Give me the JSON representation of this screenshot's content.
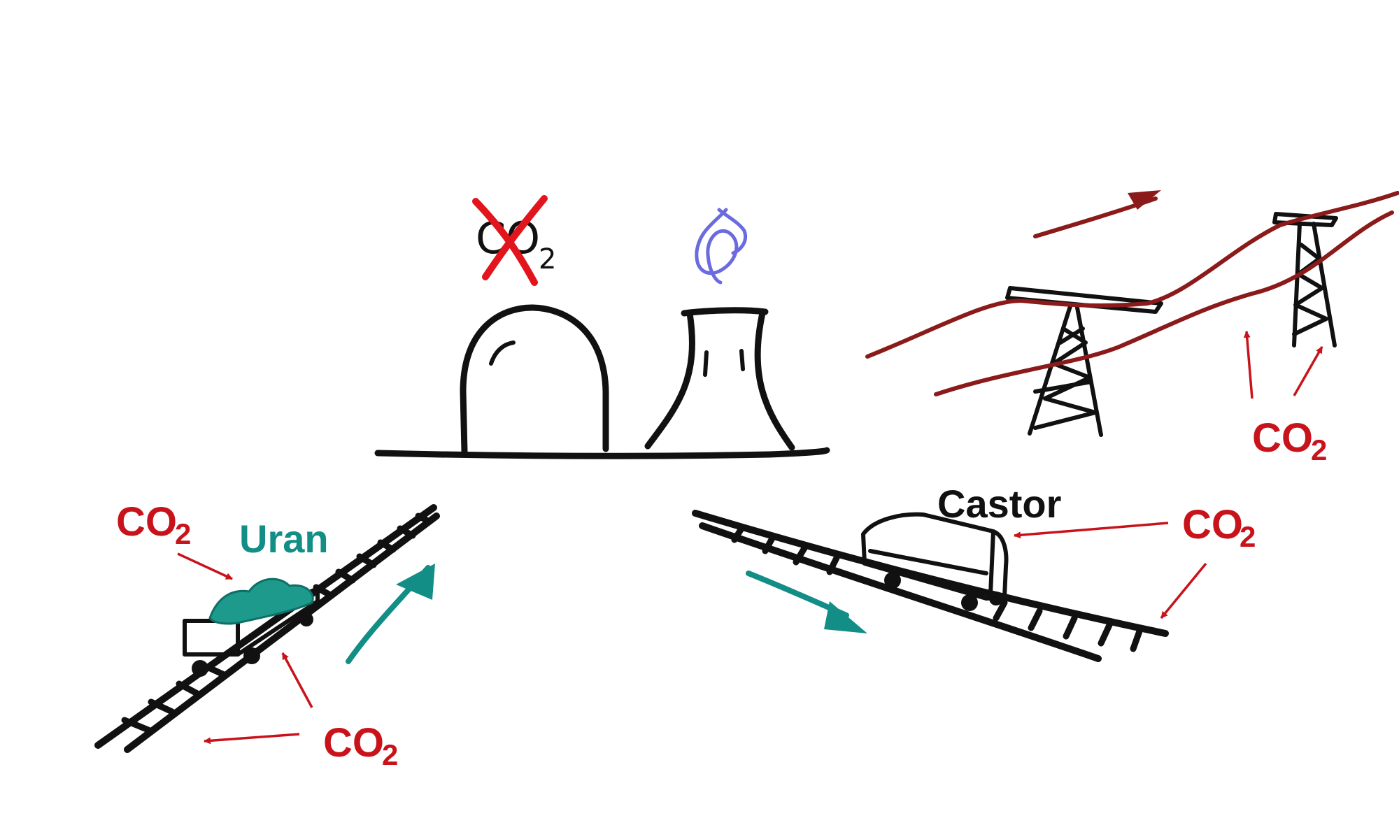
{
  "labels": {
    "crossed_co2_main": "CO",
    "crossed_co2_sub": "2",
    "co2_main": "CO",
    "co2_sub": "2",
    "uran": "Uran",
    "castor": "Castor"
  },
  "colors": {
    "co2_label": "#c8131b",
    "cross_mark": "#e2141c",
    "uranium_teal": "#128e86",
    "power_line": "#8b1a1a",
    "steam": "#6b6be0",
    "ink": "#111111"
  }
}
